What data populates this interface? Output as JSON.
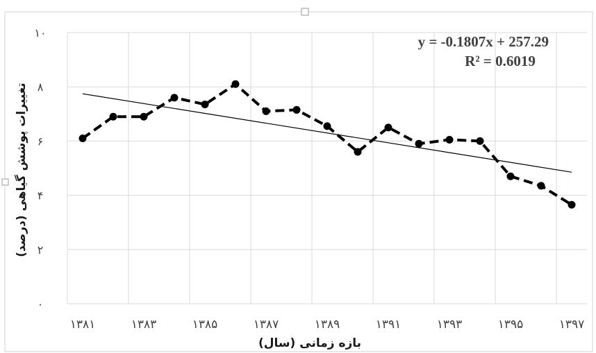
{
  "chart_data": {
    "type": "line",
    "title": "",
    "xlabel": "بازه زمانی (سال)",
    "ylabel": "تغییرات پوشش گیاهی (درصد)",
    "ylim": [
      0,
      10
    ],
    "yticks": [
      "۰",
      "۲",
      "۴",
      "۶",
      "۸",
      "۱۰"
    ],
    "ytick_values": [
      0,
      2,
      4,
      6,
      8,
      10
    ],
    "xticks": [
      "۱۳۸۱",
      "۱۳۸۳",
      "۱۳۸۵",
      "۱۳۸۷",
      "۱۳۸۹",
      "۱۳۹۱",
      "۱۳۹۳",
      "۱۳۹۵",
      "۱۳۹۷"
    ],
    "xtick_values": [
      1381,
      1383,
      1385,
      1387,
      1389,
      1391,
      1393,
      1395,
      1397
    ],
    "x": [
      1381,
      1382,
      1383,
      1384,
      1385,
      1386,
      1387,
      1388,
      1389,
      1390,
      1391,
      1392,
      1393,
      1394,
      1395,
      1396,
      1397
    ],
    "series": [
      {
        "values": [
          6.1,
          6.9,
          6.9,
          7.6,
          7.35,
          8.1,
          7.1,
          7.15,
          6.55,
          5.6,
          6.5,
          5.9,
          6.05,
          6.0,
          4.7,
          4.35,
          3.65
        ],
        "style": "dashed",
        "marker": "circle",
        "color": "#000000"
      }
    ],
    "trendline": {
      "type": "linear",
      "equation": "y = -0.1807x + 257.29",
      "r_squared": "R² = 0.6019",
      "slope": -0.1807,
      "intercept": 257.29,
      "color": "#000000"
    },
    "grid": true,
    "legend": "none"
  }
}
